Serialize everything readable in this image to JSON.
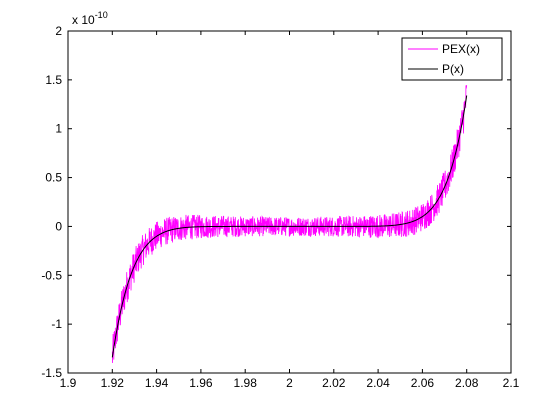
{
  "chart_data": {
    "type": "line",
    "title": "",
    "xlabel": "",
    "ylabel": "",
    "y_multiplier_base": "x 10",
    "y_multiplier_exponent": "-10",
    "xlim": [
      1.9,
      2.1
    ],
    "ylim": [
      -1.5,
      2.0
    ],
    "x_ticks": [
      1.9,
      1.92,
      1.94,
      1.96,
      1.98,
      2.0,
      2.02,
      2.04,
      2.06,
      2.08,
      2.1
    ],
    "x_tick_labels": [
      "1.9",
      "1.92",
      "1.94",
      "1.96",
      "1.98",
      "2",
      "2.02",
      "2.04",
      "2.06",
      "2.08",
      "2.1"
    ],
    "y_ticks": [
      -1.5,
      -1.0,
      -0.5,
      0.0,
      0.5,
      1.0,
      1.5,
      2.0
    ],
    "y_tick_labels": [
      "-1.5",
      "-1",
      "-0.5",
      "0",
      "0.5",
      "1",
      "1.5",
      "2"
    ],
    "grid": false,
    "legend_position": "top-right",
    "data_range": [
      1.92,
      2.08
    ],
    "series": [
      {
        "name": "PEX(x)",
        "color": "#ff00ff",
        "style": "noisy",
        "description_formula": "(x-2)^9 with rounding noise",
        "noise_amplitude": 0.1,
        "x": [
          1.92,
          1.93,
          1.94,
          1.95,
          1.96,
          1.98,
          2.0,
          2.02,
          2.04,
          2.05,
          2.06,
          2.07,
          2.08
        ],
        "y": [
          -1.34,
          -0.4,
          -0.1,
          -0.02,
          0.0,
          0.0,
          0.0,
          0.0,
          0.0,
          0.02,
          0.1,
          0.4,
          1.34
        ]
      },
      {
        "name": "P(x)",
        "color": "#000000",
        "style": "smooth",
        "x": [
          1.92,
          1.93,
          1.94,
          1.95,
          1.96,
          1.98,
          2.0,
          2.02,
          2.04,
          2.05,
          2.06,
          2.07,
          2.08
        ],
        "y": [
          -1.34,
          -0.4,
          -0.1,
          -0.02,
          0.0,
          0.0,
          0.0,
          0.0,
          0.0,
          0.02,
          0.1,
          0.4,
          1.34
        ]
      }
    ]
  }
}
